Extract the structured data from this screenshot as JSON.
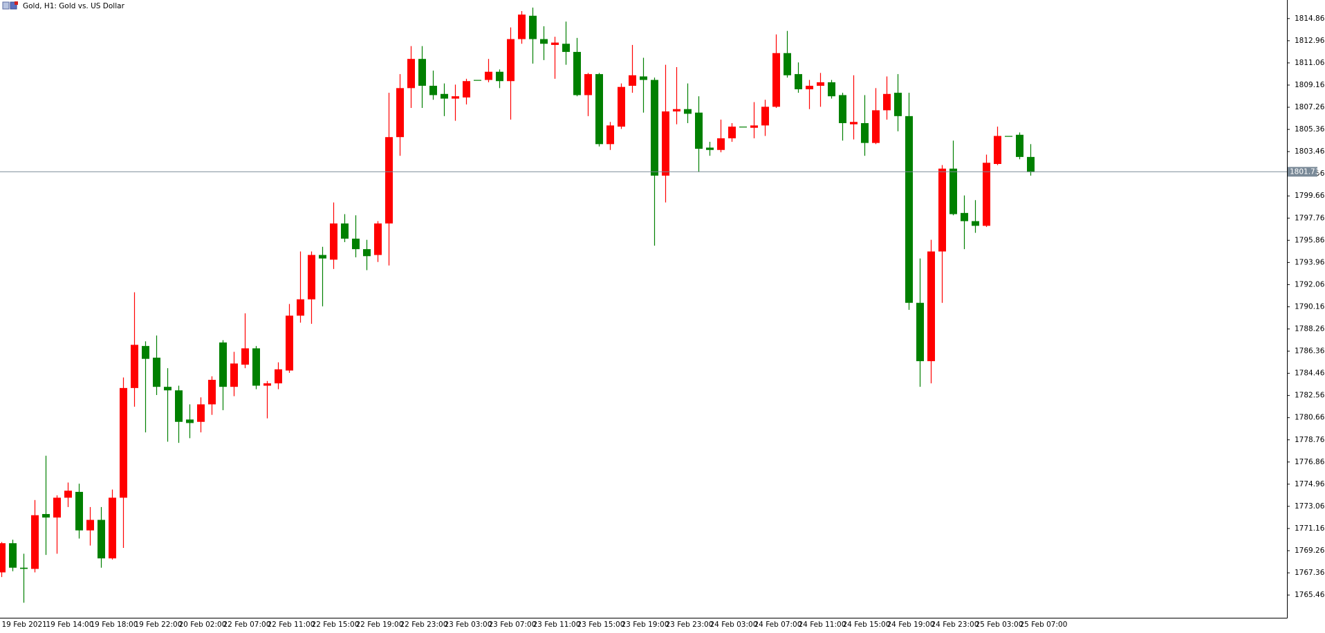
{
  "chart_data": {
    "type": "candlestick",
    "title": "Gold, H1:  Gold vs. US Dollar",
    "categories": [
      "19 Feb 2021",
      null,
      null,
      null,
      "19 Feb 14:00",
      null,
      null,
      null,
      "19 Feb 18:00",
      null,
      null,
      null,
      "19 Feb 22:00",
      null,
      null,
      null,
      "20 Feb 02:00",
      null,
      null,
      null,
      "22 Feb 07:00",
      null,
      null,
      null,
      "22 Feb 11:00",
      null,
      null,
      null,
      "22 Feb 15:00",
      null,
      null,
      null,
      "22 Feb 19:00",
      null,
      null,
      null,
      "22 Feb 23:00",
      null,
      null,
      null,
      "23 Feb 03:00",
      null,
      null,
      null,
      "23 Feb 07:00",
      null,
      null,
      null,
      "23 Feb 11:00",
      null,
      null,
      null,
      "23 Feb 15:00",
      null,
      null,
      null,
      "23 Feb 19:00",
      null,
      null,
      null,
      "23 Feb 23:00",
      null,
      null,
      null,
      "24 Feb 03:00",
      null,
      null,
      null,
      "24 Feb 07:00",
      null,
      null,
      null,
      "24 Feb 11:00",
      null,
      null,
      null,
      "24 Feb 15:00",
      null,
      null,
      null,
      "24 Feb 19:00",
      null,
      null,
      null,
      "24 Feb 23:00",
      null,
      null,
      null,
      "25 Feb 03:00",
      null,
      null,
      null,
      "25 Feb 07:00",
      null
    ],
    "open": [
      1767.4,
      1769.9,
      1767.8,
      1767.7,
      1772.4,
      1772.1,
      1773.8,
      1774.3,
      1771.0,
      1771.9,
      1768.6,
      1773.8,
      1783.2,
      1786.8,
      1785.8,
      1783.3,
      1783.0,
      1780.5,
      1780.3,
      1781.8,
      1787.1,
      1783.3,
      1785.2,
      1786.6,
      1783.4,
      1783.6,
      1784.7,
      1789.4,
      1790.8,
      1794.6,
      1794.2,
      1797.3,
      1796.0,
      1795.1,
      1794.6,
      1797.3,
      1804.7,
      1808.9,
      1811.4,
      1809.1,
      1808.4,
      1808.0,
      1808.1,
      1809.6,
      1809.6,
      1810.3,
      1809.5,
      1813.1,
      1815.1,
      1813.1,
      1812.6,
      1812.7,
      1812.0,
      1808.3,
      1810.1,
      1804.1,
      1805.6,
      1809.1,
      1809.9,
      1809.6,
      1801.4,
      1806.9,
      1807.1,
      1806.8,
      1803.8,
      1803.6,
      1804.6,
      1805.6,
      1805.5,
      1805.7,
      1807.3,
      1811.9,
      1810.1,
      1808.8,
      1809.1,
      1809.4,
      1808.3,
      1805.8,
      1805.9,
      1804.2,
      1807.0,
      1808.5,
      1806.5,
      1790.5,
      1785.5,
      1794.9,
      1802.0,
      1798.2,
      1797.5,
      1797.1,
      1802.4,
      1804.8,
      1804.9,
      1803.0
    ],
    "high": [
      1770.0,
      1770.2,
      1769.0,
      1773.6,
      1777.4,
      1774.0,
      1775.1,
      1775.0,
      1773.0,
      1773.0,
      1774.5,
      1784.1,
      1791.4,
      1787.2,
      1787.7,
      1784.9,
      1783.4,
      1781.8,
      1782.4,
      1784.2,
      1787.3,
      1786.3,
      1789.6,
      1786.8,
      1783.8,
      1785.4,
      1790.4,
      1794.9,
      1794.9,
      1795.3,
      1799.1,
      1798.1,
      1798.0,
      1795.9,
      1797.5,
      1808.5,
      1810.1,
      1812.5,
      1812.5,
      1810.4,
      1809.3,
      1809.2,
      1809.7,
      1809.6,
      1811.4,
      1810.5,
      1814.1,
      1815.5,
      1815.8,
      1814.2,
      1813.3,
      1814.6,
      1813.2,
      1810.2,
      1810.2,
      1806.0,
      1809.3,
      1812.6,
      1811.5,
      1809.8,
      1810.9,
      1810.7,
      1809.3,
      1808.2,
      1804.3,
      1806.2,
      1805.9,
      1805.6,
      1807.7,
      1807.9,
      1813.5,
      1813.8,
      1811.1,
      1809.6,
      1810.2,
      1809.6,
      1808.5,
      1810.0,
      1808.3,
      1808.9,
      1809.9,
      1810.1,
      1808.5,
      1794.3,
      1795.9,
      1802.3,
      1804.4,
      1799.7,
      1799.3,
      1803.2,
      1805.6,
      1804.8,
      1805.1,
      1804.1
    ],
    "low": [
      1767.0,
      1767.5,
      1764.8,
      1767.4,
      1768.9,
      1769.0,
      1773.0,
      1770.3,
      1769.7,
      1767.8,
      1768.5,
      1769.5,
      1781.6,
      1779.4,
      1782.6,
      1778.6,
      1778.5,
      1778.9,
      1779.4,
      1780.9,
      1781.3,
      1782.5,
      1784.9,
      1783.1,
      1780.6,
      1783.1,
      1784.5,
      1788.8,
      1788.7,
      1790.2,
      1793.4,
      1795.7,
      1794.4,
      1793.3,
      1794.0,
      1793.7,
      1803.1,
      1807.2,
      1807.2,
      1807.9,
      1806.5,
      1806.1,
      1807.5,
      1809.6,
      1809.4,
      1808.9,
      1806.2,
      1812.7,
      1811.0,
      1811.3,
      1809.7,
      1810.9,
      1808.2,
      1806.5,
      1803.9,
      1803.6,
      1805.4,
      1808.5,
      1806.8,
      1795.4,
      1799.1,
      1805.8,
      1805.9,
      1801.7,
      1803.1,
      1803.4,
      1804.3,
      1805.6,
      1804.6,
      1804.8,
      1807.2,
      1809.8,
      1808.5,
      1807.1,
      1807.3,
      1808.0,
      1804.4,
      1804.5,
      1803.1,
      1804.1,
      1806.2,
      1805.2,
      1789.9,
      1783.3,
      1783.6,
      1790.5,
      1798.0,
      1795.1,
      1796.5,
      1797.0,
      1802.3,
      1804.8,
      1802.8,
      1801.4
    ],
    "close": [
      1769.9,
      1767.8,
      1767.7,
      1772.3,
      1772.1,
      1773.8,
      1774.4,
      1771.0,
      1771.9,
      1768.6,
      1773.8,
      1783.2,
      1786.9,
      1785.7,
      1783.3,
      1783.0,
      1780.3,
      1780.2,
      1781.8,
      1783.9,
      1783.3,
      1785.3,
      1786.6,
      1783.4,
      1783.6,
      1784.8,
      1789.4,
      1790.8,
      1794.6,
      1794.3,
      1797.3,
      1796.0,
      1795.1,
      1794.5,
      1797.3,
      1804.7,
      1808.9,
      1811.4,
      1809.1,
      1808.3,
      1808.0,
      1808.2,
      1809.5,
      1809.6,
      1810.3,
      1809.5,
      1813.1,
      1815.2,
      1813.1,
      1812.7,
      1812.8,
      1812.0,
      1808.3,
      1810.1,
      1804.1,
      1805.7,
      1809.0,
      1810.0,
      1809.6,
      1801.4,
      1806.9,
      1807.1,
      1806.7,
      1803.7,
      1803.6,
      1804.6,
      1805.6,
      1805.6,
      1805.7,
      1807.3,
      1811.9,
      1810.0,
      1808.8,
      1809.1,
      1809.4,
      1808.2,
      1805.9,
      1806.0,
      1804.2,
      1807.0,
      1808.4,
      1806.5,
      1790.5,
      1785.5,
      1794.9,
      1802.0,
      1798.1,
      1797.5,
      1797.1,
      1802.5,
      1804.8,
      1804.8,
      1803.0,
      1801.7
    ],
    "up_color": "#ff0000",
    "down_color": "#008000",
    "current_price": 1801.73,
    "ylim": [
      1763.51,
      1816.45
    ],
    "yticks": [
      1765.46,
      1767.36,
      1769.26,
      1771.16,
      1773.06,
      1774.96,
      1776.86,
      1778.76,
      1780.66,
      1782.56,
      1784.46,
      1786.36,
      1788.26,
      1790.16,
      1792.06,
      1793.96,
      1795.86,
      1797.76,
      1799.66,
      1801.56,
      1803.46,
      1805.36,
      1807.26,
      1809.16,
      1811.06,
      1812.96,
      1814.86
    ]
  }
}
